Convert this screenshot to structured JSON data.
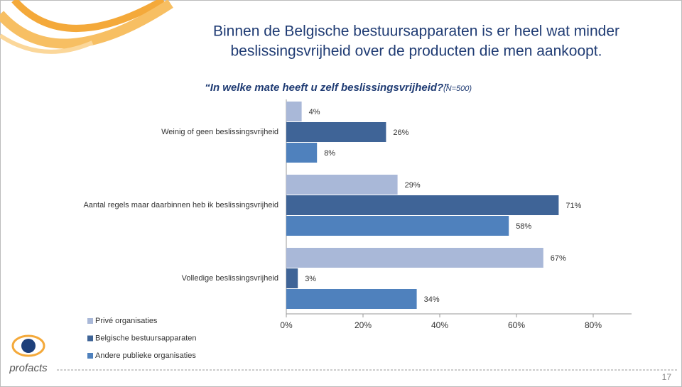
{
  "chart_data": {
    "type": "hbar",
    "title_lines": [
      "Binnen de Belgische bestuursapparaten is er heel wat minder",
      "beslissingsvrijheid over de producten die men aankoopt."
    ],
    "subtitle": "“In welke mate heeft u zelf beslissingsvrijheid?”",
    "subtitle_note": "(N=500)",
    "categories": [
      "Weinig of geen beslissingsvrijheid",
      "Aantal regels maar daarbinnen heb ik beslissingsvrijheid",
      "Volledige beslissingsvrijheid"
    ],
    "series": [
      {
        "name": "Privé organisaties",
        "color": "#a9b8d8",
        "values": [
          4,
          29,
          67
        ],
        "value_labels": [
          "4%",
          "29%",
          "67%"
        ]
      },
      {
        "name": "Belgische bestuursapparaten",
        "color": "#3f6497",
        "values": [
          26,
          71,
          3
        ],
        "value_labels": [
          "26%",
          "71%",
          "3%"
        ]
      },
      {
        "name": "Andere publieke organisaties",
        "color": "#4f81bd",
        "values": [
          8,
          58,
          34
        ],
        "value_labels": [
          "8%",
          "58%",
          "34%"
        ]
      }
    ],
    "xlim": [
      0,
      90
    ],
    "xticks": [
      {
        "value": 0,
        "label": "0%"
      },
      {
        "value": 20,
        "label": "20%"
      },
      {
        "value": 40,
        "label": "40%"
      },
      {
        "value": 60,
        "label": "60%"
      },
      {
        "value": 80,
        "label": "80%"
      }
    ],
    "legend": "bottom-left"
  },
  "logo": "profacts",
  "page_number": "17"
}
